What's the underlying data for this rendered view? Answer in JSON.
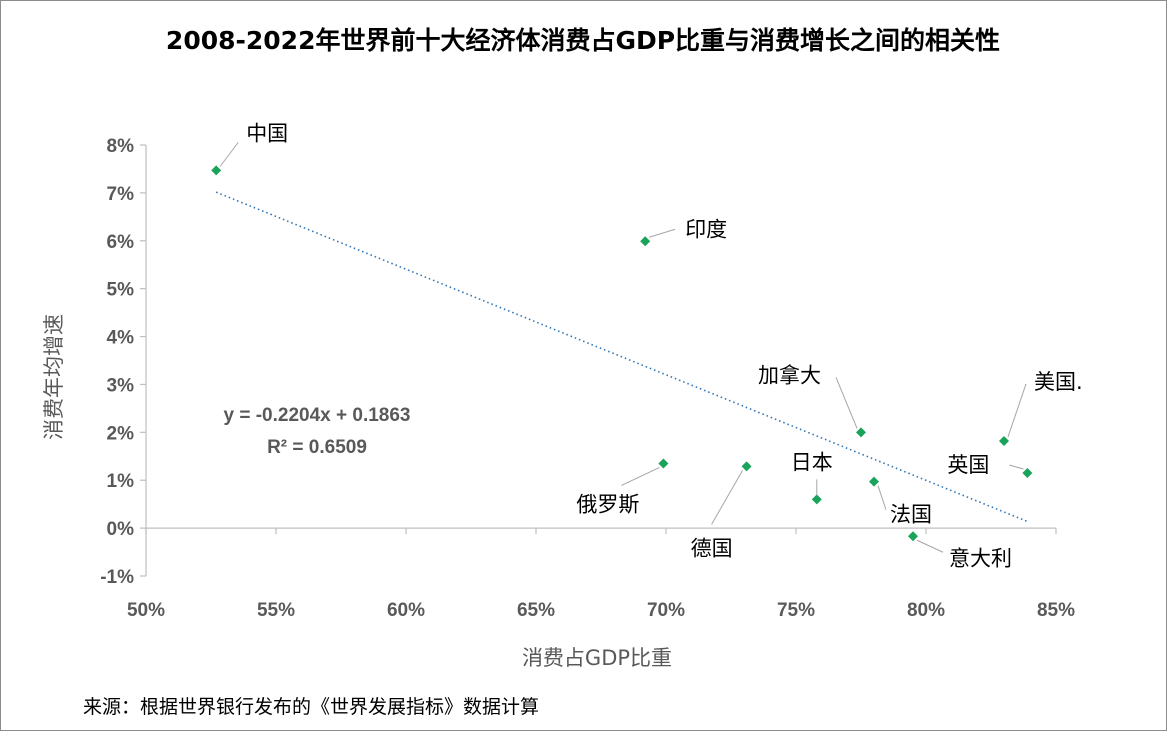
{
  "chart_data": {
    "type": "scatter",
    "title": "2008-2022年世界前十大经济体消费占GDP比重与消费增长之间的相关性",
    "xlabel": "消费占GDP比重",
    "ylabel": "消费年均增速",
    "xlim": [
      0.5,
      0.85
    ],
    "ylim": [
      -0.01,
      0.08
    ],
    "x_ticks": [
      0.5,
      0.55,
      0.6,
      0.65,
      0.7,
      0.75,
      0.8,
      0.85
    ],
    "x_tick_labels": [
      "50%",
      "55%",
      "60%",
      "65%",
      "70%",
      "75%",
      "80%",
      "85%"
    ],
    "y_ticks": [
      -0.01,
      0.0,
      0.01,
      0.02,
      0.03,
      0.04,
      0.05,
      0.06,
      0.07,
      0.08
    ],
    "y_tick_labels": [
      "-1%",
      "0%",
      "1%",
      "2%",
      "3%",
      "4%",
      "5%",
      "6%",
      "7%",
      "8%"
    ],
    "grid": false,
    "marker_color": "#1aa35a",
    "trendline_color": "#2e75b6",
    "points": [
      {
        "label": "中国",
        "x": 0.527,
        "y": 0.0747
      },
      {
        "label": "印度",
        "x": 0.692,
        "y": 0.0599
      },
      {
        "label": "加拿大",
        "x": 0.775,
        "y": 0.02
      },
      {
        "label": "美国.",
        "x": 0.83,
        "y": 0.0182
      },
      {
        "label": "英国",
        "x": 0.839,
        "y": 0.0115
      },
      {
        "label": "俄罗斯",
        "x": 0.699,
        "y": 0.0135
      },
      {
        "label": "德国",
        "x": 0.731,
        "y": 0.0129
      },
      {
        "label": "日本",
        "x": 0.758,
        "y": 0.006
      },
      {
        "label": "法国",
        "x": 0.78,
        "y": 0.0097
      },
      {
        "label": "意大利",
        "x": 0.795,
        "y": -0.0017
      }
    ],
    "trendline": {
      "slope": -0.2204,
      "intercept": 0.1863,
      "x_range": [
        0.527,
        0.839
      ],
      "equation": "y = -0.2204x + 0.1863",
      "r_squared": "R² = 0.6509"
    }
  },
  "source_note": "来源：根据世界银行发布的《世界发展指标》数据计算"
}
